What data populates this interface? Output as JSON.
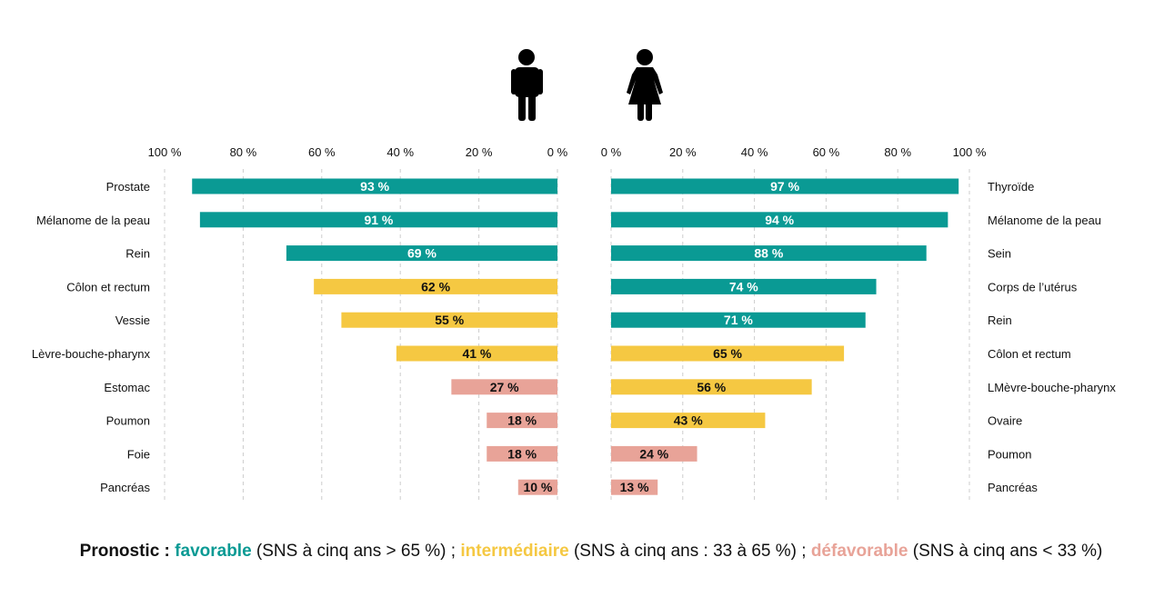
{
  "chart_data": [
    {
      "type": "bar",
      "orientation": "horizontal",
      "direction": "right-to-left",
      "group_icon": "male-person-icon",
      "categories": [
        "Prostate",
        "Mélanome de la peau",
        "Rein",
        "Côlon et rectum",
        "Vessie",
        "Lèvre-bouche-pharynx",
        "Estomac",
        "Poumon",
        "Foie",
        "Pancréas"
      ],
      "values": [
        93,
        91,
        69,
        62,
        55,
        41,
        27,
        18,
        18,
        10
      ],
      "value_labels": [
        "93 %",
        "91 %",
        "69 %",
        "62 %",
        "55 %",
        "41 %",
        "27 %",
        "18 %",
        "18 %",
        "10 %"
      ],
      "xlim": [
        0,
        100
      ],
      "ticks": [
        "0 %",
        "20 %",
        "40 %",
        "60 %",
        "80 %",
        "100 %"
      ],
      "grid": true
    },
    {
      "type": "bar",
      "orientation": "horizontal",
      "direction": "left-to-right",
      "group_icon": "female-person-icon",
      "categories": [
        "Thyroïde",
        "Mélanome de la peau",
        "Sein",
        "Corps de l’utérus",
        "Rein",
        "Côlon et rectum",
        "LMèvre-bouche-pharynx",
        "Ovaire",
        "Poumon",
        "Pancréas"
      ],
      "values": [
        97,
        94,
        88,
        74,
        71,
        65,
        56,
        43,
        24,
        13
      ],
      "value_labels": [
        "97 %",
        "94 %",
        "88 %",
        "74 %",
        "71 %",
        "65 %",
        "56 %",
        "43 %",
        "24 %",
        "13 %"
      ],
      "xlim": [
        0,
        100
      ],
      "ticks": [
        "0 %",
        "20 %",
        "40 %",
        "60 %",
        "80 %",
        "100 %"
      ],
      "grid": true
    }
  ],
  "colors": {
    "favorable": "#0a9a94",
    "intermediaire": "#f5c842",
    "defavorable": "#e8a398",
    "grid": "#cccccc"
  },
  "legend": {
    "prefix": "Pronostic : ",
    "favorable": "favorable",
    "favorable_desc": " (SNS à cinq ans > 65 %) ; ",
    "intermediaire": "intermédiaire",
    "intermediaire_desc": " (SNS à cinq ans : 33 à 65 %) ; ",
    "defavorable": "défavorable",
    "defavorable_desc": " (SNS à cinq ans < 33 %)"
  }
}
